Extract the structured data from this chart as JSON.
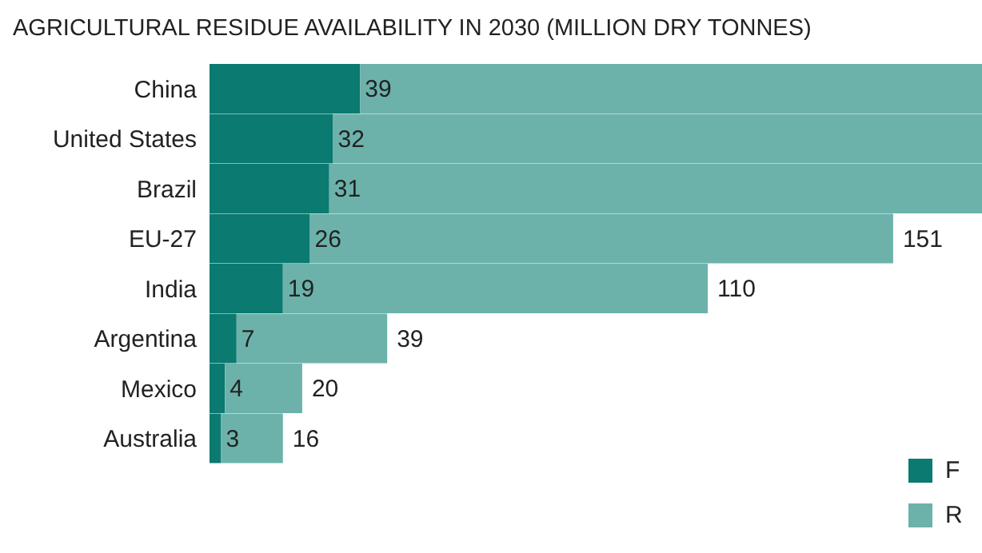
{
  "chart_data": {
    "type": "bar",
    "orientation": "horizontal",
    "stacked": true,
    "title": "AGRICULTURAL RESIDUE AVAILABILITY IN 2030 (MILLION DRY TONNES)",
    "categories": [
      "China",
      "United States",
      "Brazil",
      "EU-27",
      "India",
      "Argentina",
      "Mexico",
      "Australia"
    ],
    "xlim": [
      0,
      200
    ],
    "tick_labels": "y",
    "legend": "bottom right",
    "grid": false,
    "series": [
      {
        "name": "F",
        "color": "#0b7a70",
        "values": [
          39,
          32,
          31,
          26,
          19,
          7,
          4,
          3
        ],
        "value_labels": [
          "39",
          "32",
          "31",
          "26",
          "19",
          "7",
          "4",
          "3"
        ]
      },
      {
        "name": "R",
        "color": "#6cb2ab",
        "values": [
          161,
          168,
          169,
          151,
          110,
          39,
          20,
          16
        ],
        "value_labels": [
          null,
          null,
          null,
          "151",
          "110",
          "39",
          "20",
          "16"
        ]
      }
    ]
  }
}
